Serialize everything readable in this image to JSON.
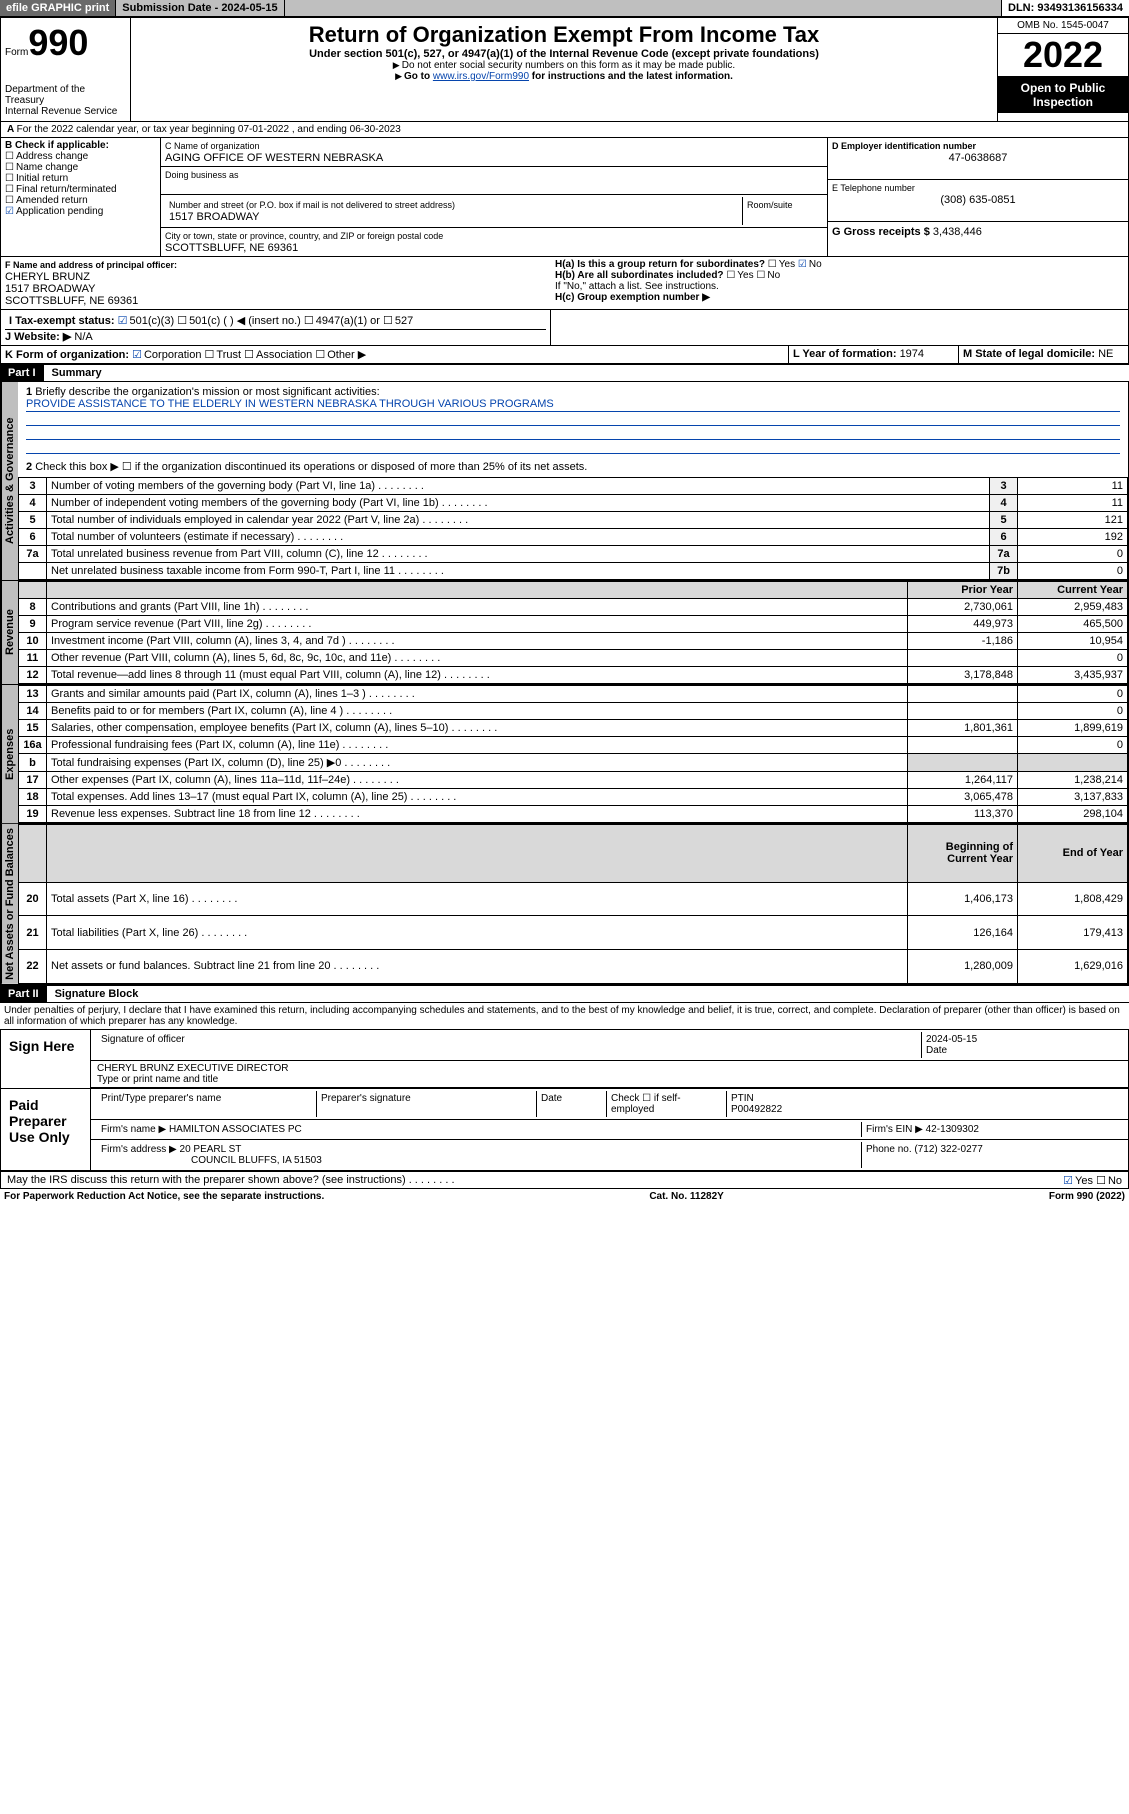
{
  "header": {
    "efile": "efile GRAPHIC print",
    "submission_label": "Submission Date - 2024-05-15",
    "dln": "DLN: 93493136156334"
  },
  "form": {
    "form_label": "Form",
    "form_no": "990",
    "title": "Return of Organization Exempt From Income Tax",
    "subtitle": "Under section 501(c), 527, or 4947(a)(1) of the Internal Revenue Code (except private foundations)",
    "note1": "Do not enter social security numbers on this form as it may be made public.",
    "note2_pre": "Go to ",
    "note2_link": "www.irs.gov/Form990",
    "note2_post": " for instructions and the latest information.",
    "dept": "Department of the Treasury",
    "irs": "Internal Revenue Service",
    "omb": "OMB No. 1545-0047",
    "year": "2022",
    "open": "Open to Public Inspection"
  },
  "line_a": "For the 2022 calendar year, or tax year beginning 07-01-2022   , and ending 06-30-2023",
  "box_b": {
    "title": "B Check if applicable:",
    "opts": [
      "Address change",
      "Name change",
      "Initial return",
      "Final return/terminated",
      "Amended return",
      "Application pending"
    ]
  },
  "box_c": {
    "name_lbl": "C Name of organization",
    "name": "AGING OFFICE OF WESTERN NEBRASKA",
    "dba_lbl": "Doing business as",
    "addr_lbl": "Number and street (or P.O. box if mail is not delivered to street address)",
    "room_lbl": "Room/suite",
    "addr": "1517 BROADWAY",
    "city_lbl": "City or town, state or province, country, and ZIP or foreign postal code",
    "city": "SCOTTSBLUFF, NE  69361"
  },
  "box_d": {
    "lbl": "D Employer identification number",
    "val": "47-0638687"
  },
  "box_e": {
    "lbl": "E Telephone number",
    "val": "(308) 635-0851"
  },
  "box_g": {
    "lbl": "G Gross receipts $ ",
    "val": "3,438,446"
  },
  "box_f": {
    "lbl": "F  Name and address of principal officer:",
    "name": "CHERYL BRUNZ",
    "addr1": "1517 BROADWAY",
    "addr2": "SCOTTSBLUFF, NE  69361"
  },
  "box_h": {
    "ha": "H(a)  Is this a group return for subordinates?",
    "hb": "H(b)  Are all subordinates included?",
    "hb_note": "If \"No,\" attach a list. See instructions.",
    "hc": "H(c)  Group exemption number ▶",
    "yes": "Yes",
    "no": "No"
  },
  "box_i": {
    "lbl": "I   Tax-exempt status:",
    "o1": "501(c)(3)",
    "o2": "501(c) (  ) ◀ (insert no.)",
    "o3": "4947(a)(1) or",
    "o4": "527"
  },
  "box_j": {
    "lbl": "J   Website: ▶",
    "val": "N/A"
  },
  "box_k": {
    "lbl": "K Form of organization:",
    "opts": [
      "Corporation",
      "Trust",
      "Association",
      "Other ▶"
    ]
  },
  "box_l": {
    "lbl": "L Year of formation: ",
    "val": "1974"
  },
  "box_m": {
    "lbl": "M State of legal domicile: ",
    "val": "NE"
  },
  "part1": {
    "hdr": "Part I",
    "title": "Summary",
    "l1": "Briefly describe the organization's mission or most significant activities:",
    "mission": "PROVIDE ASSISTANCE TO THE ELDERLY IN WESTERN NEBRASKA THROUGH VARIOUS PROGRAMS",
    "l2": "Check this box ▶ ☐  if the organization discontinued its operations or disposed of more than 25% of its net assets.",
    "rows_gov": [
      {
        "n": "3",
        "t": "Number of voting members of the governing body (Part VI, line 1a)",
        "r": "3",
        "v": "11"
      },
      {
        "n": "4",
        "t": "Number of independent voting members of the governing body (Part VI, line 1b)",
        "r": "4",
        "v": "11"
      },
      {
        "n": "5",
        "t": "Total number of individuals employed in calendar year 2022 (Part V, line 2a)",
        "r": "5",
        "v": "121"
      },
      {
        "n": "6",
        "t": "Total number of volunteers (estimate if necessary)",
        "r": "6",
        "v": "192"
      },
      {
        "n": "7a",
        "t": "Total unrelated business revenue from Part VIII, column (C), line 12",
        "r": "7a",
        "v": "0"
      },
      {
        "n": "",
        "t": "Net unrelated business taxable income from Form 990-T, Part I, line 11",
        "r": "7b",
        "v": "0"
      }
    ],
    "col_prior": "Prior Year",
    "col_curr": "Current Year",
    "rows_rev": [
      {
        "n": "8",
        "t": "Contributions and grants (Part VIII, line 1h)",
        "p": "2,730,061",
        "c": "2,959,483"
      },
      {
        "n": "9",
        "t": "Program service revenue (Part VIII, line 2g)",
        "p": "449,973",
        "c": "465,500"
      },
      {
        "n": "10",
        "t": "Investment income (Part VIII, column (A), lines 3, 4, and 7d )",
        "p": "-1,186",
        "c": "10,954"
      },
      {
        "n": "11",
        "t": "Other revenue (Part VIII, column (A), lines 5, 6d, 8c, 9c, 10c, and 11e)",
        "p": "",
        "c": "0"
      },
      {
        "n": "12",
        "t": "Total revenue—add lines 8 through 11 (must equal Part VIII, column (A), line 12)",
        "p": "3,178,848",
        "c": "3,435,937"
      }
    ],
    "rows_exp": [
      {
        "n": "13",
        "t": "Grants and similar amounts paid (Part IX, column (A), lines 1–3 )",
        "p": "",
        "c": "0"
      },
      {
        "n": "14",
        "t": "Benefits paid to or for members (Part IX, column (A), line 4 )",
        "p": "",
        "c": "0"
      },
      {
        "n": "15",
        "t": "Salaries, other compensation, employee benefits (Part IX, column (A), lines 5–10)",
        "p": "1,801,361",
        "c": "1,899,619"
      },
      {
        "n": "16a",
        "t": "Professional fundraising fees (Part IX, column (A), line 11e)",
        "p": "",
        "c": "0"
      },
      {
        "n": "b",
        "t": "Total fundraising expenses (Part IX, column (D), line 25) ▶0",
        "p": "shade",
        "c": "shade"
      },
      {
        "n": "17",
        "t": "Other expenses (Part IX, column (A), lines 11a–11d, 11f–24e)",
        "p": "1,264,117",
        "c": "1,238,214"
      },
      {
        "n": "18",
        "t": "Total expenses. Add lines 13–17 (must equal Part IX, column (A), line 25)",
        "p": "3,065,478",
        "c": "3,137,833"
      },
      {
        "n": "19",
        "t": "Revenue less expenses. Subtract line 18 from line 12",
        "p": "113,370",
        "c": "298,104"
      }
    ],
    "col_beg": "Beginning of Current Year",
    "col_end": "End of Year",
    "rows_net": [
      {
        "n": "20",
        "t": "Total assets (Part X, line 16)",
        "p": "1,406,173",
        "c": "1,808,429"
      },
      {
        "n": "21",
        "t": "Total liabilities (Part X, line 26)",
        "p": "126,164",
        "c": "179,413"
      },
      {
        "n": "22",
        "t": "Net assets or fund balances. Subtract line 21 from line 20",
        "p": "1,280,009",
        "c": "1,629,016"
      }
    ],
    "vtabs": [
      "Activities & Governance",
      "Revenue",
      "Expenses",
      "Net Assets or Fund Balances"
    ]
  },
  "part2": {
    "hdr": "Part II",
    "title": "Signature Block",
    "perjury": "Under penalties of perjury, I declare that I have examined this return, including accompanying schedules and statements, and to the best of my knowledge and belief, it is true, correct, and complete. Declaration of preparer (other than officer) is based on all information of which preparer has any knowledge.",
    "sign_here": "Sign Here",
    "sig_officer": "Signature of officer",
    "sig_date": "Date",
    "sig_date_val": "2024-05-15",
    "officer_name": "CHERYL BRUNZ  EXECUTIVE DIRECTOR",
    "type_name": "Type or print name and title",
    "paid": "Paid Preparer Use Only",
    "prep_name_lbl": "Print/Type preparer's name",
    "prep_sig_lbl": "Preparer's signature",
    "prep_date_lbl": "Date",
    "check_if": "Check ☐ if self-employed",
    "ptin_lbl": "PTIN",
    "ptin": "P00492822",
    "firm_name_lbl": "Firm's name   ▶",
    "firm_name": "HAMILTON ASSOCIATES PC",
    "firm_ein_lbl": "Firm's EIN ▶",
    "firm_ein": "42-1309302",
    "firm_addr_lbl": "Firm's address ▶",
    "firm_addr1": "20 PEARL ST",
    "firm_addr2": "COUNCIL BLUFFS, IA  51503",
    "phone_lbl": "Phone no. ",
    "phone": "(712) 322-0277",
    "may_irs": "May the IRS discuss this return with the preparer shown above? (see instructions)"
  },
  "footer": {
    "pra": "For Paperwork Reduction Act Notice, see the separate instructions.",
    "cat": "Cat. No. 11282Y",
    "form": "Form 990 (2022)"
  }
}
